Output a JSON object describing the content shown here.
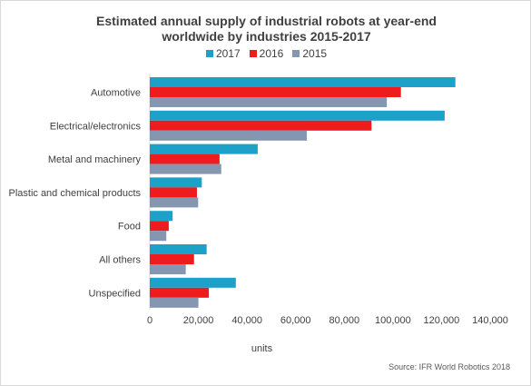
{
  "chart_data": {
    "type": "bar",
    "orientation": "horizontal",
    "title": "Estimated annual supply of industrial robots at year-end worldwide  by industries 2015-2017",
    "title_lines": [
      "Estimated annual supply of industrial robots at year-end",
      "worldwide  by industries 2015-2017"
    ],
    "categories": [
      "Automotive",
      "Electrical/electronics",
      "Metal and machinery",
      "Plastic and chemical products",
      "Food",
      "All others",
      "Unspecified"
    ],
    "series": [
      {
        "name": "2017",
        "color": "#1da1c8",
        "values": [
          125700,
          121300,
          44400,
          21400,
          9400,
          23400,
          35400
        ]
      },
      {
        "name": "2016",
        "color": "#ee1c1c",
        "values": [
          103300,
          91200,
          28700,
          19400,
          7800,
          18200,
          24300
        ]
      },
      {
        "name": "2015",
        "color": "#8496b0",
        "values": [
          97500,
          64600,
          29400,
          19900,
          6800,
          14800,
          20000
        ]
      }
    ],
    "xlim": [
      0,
      140000
    ],
    "xticks": [
      0,
      20000,
      40000,
      60000,
      80000,
      100000,
      120000,
      140000
    ],
    "xtick_labels": [
      "0",
      "20,000",
      "40,000",
      "60,000",
      "80,000",
      "100,000",
      "120,000",
      "140,000"
    ],
    "xlabel": "units",
    "ylabel": "",
    "legend_position": "top",
    "grid": false
  },
  "source_note": "Source: IFR World Robotics 2018"
}
